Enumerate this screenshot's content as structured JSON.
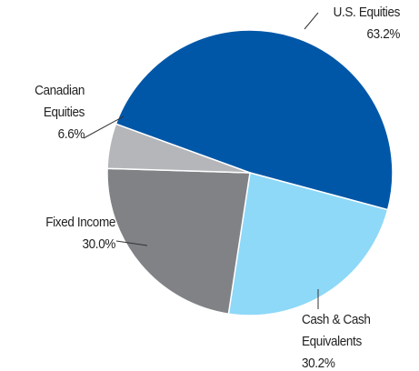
{
  "chart_data": {
    "type": "pie",
    "categories": [
      "U.S. Equities",
      "Cash & Cash Equivalents",
      "Fixed Income",
      "Canadian Equities"
    ],
    "values": [
      63.2,
      30.2,
      30.0,
      6.6
    ],
    "value_labels": [
      "63.2%",
      "30.2%",
      "30.0%",
      "6.6%"
    ],
    "colors": [
      "#0057a8",
      "#8ed8f8",
      "#808285",
      "#b5b6b9"
    ]
  }
}
